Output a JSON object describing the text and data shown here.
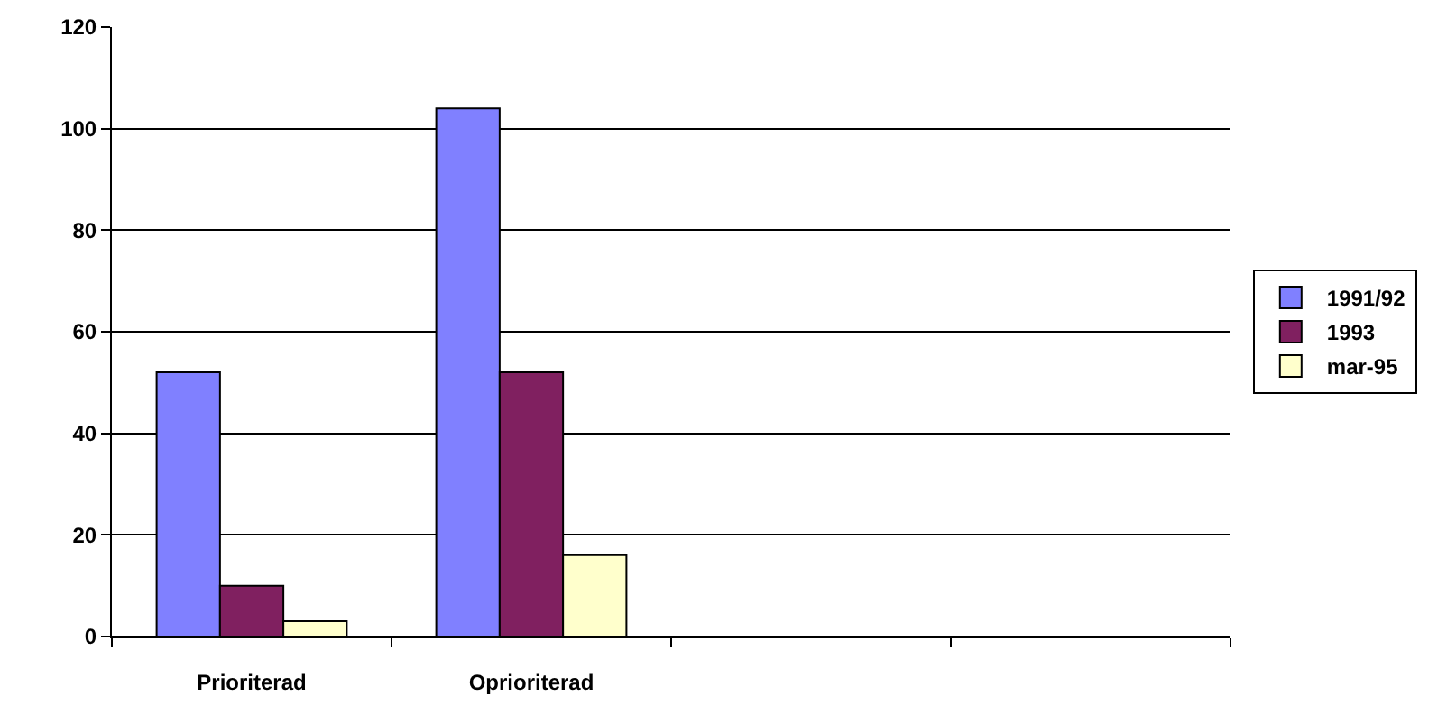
{
  "chart_data": {
    "type": "bar",
    "categories": [
      "Prioriterad",
      "Oprioriterad",
      null,
      null
    ],
    "series": [
      {
        "name": "1991/92",
        "color": "#8080ff",
        "values": [
          52,
          104,
          null,
          null
        ]
      },
      {
        "name": "1993",
        "color": "#802060",
        "values": [
          10,
          52,
          null,
          null
        ]
      },
      {
        "name": "mar-95",
        "color": "#ffffcc",
        "values": [
          3,
          16,
          null,
          null
        ]
      }
    ],
    "ylim": [
      0,
      120
    ],
    "yticks": [
      0,
      20,
      40,
      60,
      80,
      100,
      120
    ],
    "grid": "y",
    "legend": "right"
  }
}
